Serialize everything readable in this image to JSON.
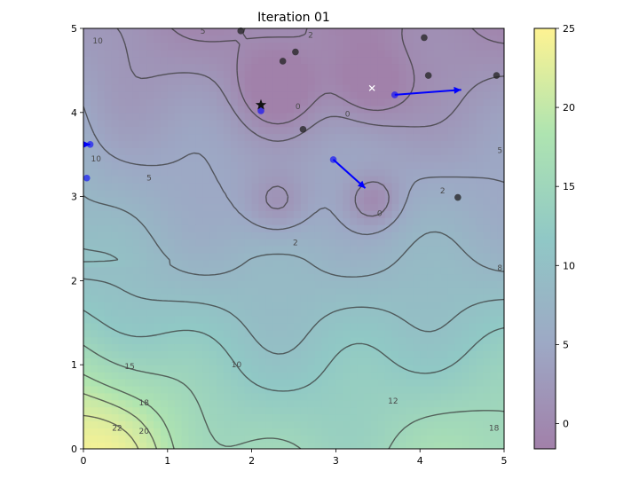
{
  "chart_data": {
    "type": "contour",
    "title": "Iteration 01",
    "xlabel": "",
    "ylabel": "",
    "xlim": [
      0,
      5
    ],
    "ylim": [
      0,
      5
    ],
    "x_ticks": [
      "0",
      "1",
      "2",
      "3",
      "4",
      "5"
    ],
    "y_ticks": [
      "0",
      "1",
      "2",
      "3",
      "4",
      "5"
    ],
    "colorbar": {
      "range": [
        -1.6,
        25
      ],
      "ticks": [
        "0",
        "5",
        "10",
        "15",
        "20",
        "25"
      ],
      "colors": [
        "#440154",
        "#3b528b",
        "#21918c",
        "#5ec962",
        "#fde725"
      ]
    },
    "contour_labels": [
      {
        "text": "10",
        "x": 0.17,
        "y": 4.85
      },
      {
        "text": "5",
        "x": 1.42,
        "y": 4.97
      },
      {
        "text": "2",
        "x": 2.7,
        "y": 4.92
      },
      {
        "text": "0",
        "x": 2.55,
        "y": 4.07
      },
      {
        "text": "0",
        "x": 3.14,
        "y": 3.98
      },
      {
        "text": "10",
        "x": 0.15,
        "y": 3.45
      },
      {
        "text": "5",
        "x": 0.78,
        "y": 3.22
      },
      {
        "text": "0",
        "x": 3.52,
        "y": 2.8
      },
      {
        "text": "2",
        "x": 2.52,
        "y": 2.45
      },
      {
        "text": "2",
        "x": 4.27,
        "y": 3.07
      },
      {
        "text": "5",
        "x": 4.95,
        "y": 3.55
      },
      {
        "text": "8",
        "x": 4.95,
        "y": 2.15
      },
      {
        "text": "10",
        "x": 1.82,
        "y": 1.0
      },
      {
        "text": "15",
        "x": 0.55,
        "y": 0.98
      },
      {
        "text": "12",
        "x": 3.68,
        "y": 0.57
      },
      {
        "text": "18",
        "x": 0.72,
        "y": 0.55
      },
      {
        "text": "20",
        "x": 0.72,
        "y": 0.21
      },
      {
        "text": "22",
        "x": 0.4,
        "y": 0.25
      },
      {
        "text": "18",
        "x": 4.88,
        "y": 0.25
      }
    ],
    "particles_gray": [
      {
        "x": 1.87,
        "y": 4.97
      },
      {
        "x": 2.37,
        "y": 4.61
      },
      {
        "x": 2.52,
        "y": 4.72
      },
      {
        "x": 4.05,
        "y": 4.89
      },
      {
        "x": 4.1,
        "y": 4.44
      },
      {
        "x": 4.91,
        "y": 4.44
      },
      {
        "x": 2.61,
        "y": 3.8
      },
      {
        "x": 4.45,
        "y": 2.99
      }
    ],
    "particles_blue": [
      {
        "x": 2.11,
        "y": 4.02
      },
      {
        "x": 0.08,
        "y": 3.62
      },
      {
        "x": 0.04,
        "y": 3.22
      },
      {
        "x": 2.97,
        "y": 3.44
      },
      {
        "x": 3.7,
        "y": 4.21
      }
    ],
    "arrows": [
      {
        "x0": 3.7,
        "y0": 4.21,
        "x1": 4.49,
        "y1": 4.27
      },
      {
        "x0": 2.97,
        "y0": 3.44,
        "x1": 3.35,
        "y1": 3.1
      },
      {
        "x0": 0.02,
        "y0": 3.62,
        "x1": 0.08,
        "y1": 3.62
      }
    ],
    "global_best": {
      "x": 2.11,
      "y": 4.09
    },
    "optimum": {
      "x": 3.43,
      "y": 4.29
    },
    "colors": {
      "arrow": "#0000ff",
      "particle_blue": "#0000ff",
      "particle_gray": "#222222",
      "contour_line": "#3a3a3a"
    }
  }
}
